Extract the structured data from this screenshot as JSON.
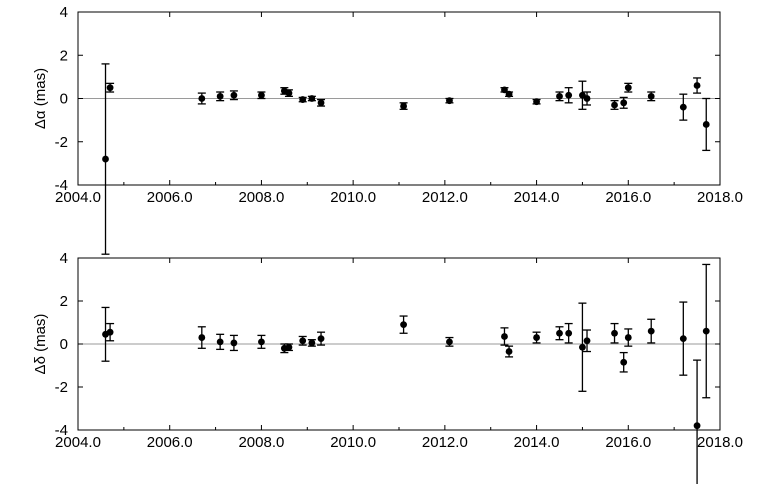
{
  "chart_data": [
    {
      "type": "scatter",
      "title": "",
      "xlabel": "",
      "ylabel": "Δα (mas)",
      "xlim": [
        2004.0,
        2018.0
      ],
      "ylim": [
        -4,
        4
      ],
      "xticks": [
        "2004.0",
        "2006.0",
        "2008.0",
        "2010.0",
        "2012.0",
        "2014.0",
        "2016.0",
        "2018.0"
      ],
      "yticks": [
        "4",
        "2",
        "0",
        "-2",
        "-4"
      ],
      "zero_line": true,
      "grid": false,
      "points": [
        {
          "x": 2004.6,
          "y": -2.8,
          "err": 4.4
        },
        {
          "x": 2004.7,
          "y": 0.5,
          "err": 0.2
        },
        {
          "x": 2006.7,
          "y": 0.0,
          "err": 0.25
        },
        {
          "x": 2007.1,
          "y": 0.1,
          "err": 0.2
        },
        {
          "x": 2007.4,
          "y": 0.15,
          "err": 0.2
        },
        {
          "x": 2008.0,
          "y": 0.15,
          "err": 0.15
        },
        {
          "x": 2008.5,
          "y": 0.35,
          "err": 0.15
        },
        {
          "x": 2008.6,
          "y": 0.25,
          "err": 0.15
        },
        {
          "x": 2008.9,
          "y": -0.05,
          "err": 0.1
        },
        {
          "x": 2009.1,
          "y": 0.0,
          "err": 0.1
        },
        {
          "x": 2009.3,
          "y": -0.2,
          "err": 0.15
        },
        {
          "x": 2011.1,
          "y": -0.35,
          "err": 0.15
        },
        {
          "x": 2012.1,
          "y": -0.1,
          "err": 0.1
        },
        {
          "x": 2013.3,
          "y": 0.4,
          "err": 0.1
        },
        {
          "x": 2013.4,
          "y": 0.2,
          "err": 0.1
        },
        {
          "x": 2014.0,
          "y": -0.15,
          "err": 0.1
        },
        {
          "x": 2014.5,
          "y": 0.1,
          "err": 0.2
        },
        {
          "x": 2014.7,
          "y": 0.15,
          "err": 0.35
        },
        {
          "x": 2015.0,
          "y": 0.15,
          "err": 0.65
        },
        {
          "x": 2015.1,
          "y": 0.0,
          "err": 0.3
        },
        {
          "x": 2015.7,
          "y": -0.3,
          "err": 0.2
        },
        {
          "x": 2015.9,
          "y": -0.2,
          "err": 0.25
        },
        {
          "x": 2016.0,
          "y": 0.5,
          "err": 0.2
        },
        {
          "x": 2016.5,
          "y": 0.1,
          "err": 0.2
        },
        {
          "x": 2017.2,
          "y": -0.4,
          "err": 0.6
        },
        {
          "x": 2017.5,
          "y": 0.6,
          "err": 0.35
        },
        {
          "x": 2017.7,
          "y": -1.2,
          "err": 1.2
        }
      ]
    },
    {
      "type": "scatter",
      "title": "",
      "xlabel": "",
      "ylabel": "Δδ (mas)",
      "xlim": [
        2004.0,
        2018.0
      ],
      "ylim": [
        -4,
        4
      ],
      "xticks": [
        "2004.0",
        "2006.0",
        "2008.0",
        "2010.0",
        "2012.0",
        "2014.0",
        "2016.0",
        "2018.0"
      ],
      "yticks": [
        "4",
        "2",
        "0",
        "-2",
        "-4"
      ],
      "zero_line": true,
      "grid": false,
      "points": [
        {
          "x": 2004.6,
          "y": 0.45,
          "err": 1.25
        },
        {
          "x": 2004.7,
          "y": 0.55,
          "err": 0.4
        },
        {
          "x": 2006.7,
          "y": 0.3,
          "err": 0.5
        },
        {
          "x": 2007.1,
          "y": 0.1,
          "err": 0.35
        },
        {
          "x": 2007.4,
          "y": 0.05,
          "err": 0.35
        },
        {
          "x": 2008.0,
          "y": 0.1,
          "err": 0.3
        },
        {
          "x": 2008.5,
          "y": -0.2,
          "err": 0.2
        },
        {
          "x": 2008.6,
          "y": -0.15,
          "err": 0.15
        },
        {
          "x": 2008.9,
          "y": 0.15,
          "err": 0.2
        },
        {
          "x": 2009.1,
          "y": 0.05,
          "err": 0.15
        },
        {
          "x": 2009.3,
          "y": 0.25,
          "err": 0.3
        },
        {
          "x": 2011.1,
          "y": 0.9,
          "err": 0.4
        },
        {
          "x": 2012.1,
          "y": 0.1,
          "err": 0.2
        },
        {
          "x": 2013.3,
          "y": 0.35,
          "err": 0.4
        },
        {
          "x": 2013.4,
          "y": -0.35,
          "err": 0.25
        },
        {
          "x": 2014.0,
          "y": 0.3,
          "err": 0.25
        },
        {
          "x": 2014.5,
          "y": 0.5,
          "err": 0.3
        },
        {
          "x": 2014.7,
          "y": 0.5,
          "err": 0.45
        },
        {
          "x": 2015.0,
          "y": -0.15,
          "err": 2.05
        },
        {
          "x": 2015.1,
          "y": 0.15,
          "err": 0.5
        },
        {
          "x": 2015.7,
          "y": 0.5,
          "err": 0.45
        },
        {
          "x": 2015.9,
          "y": -0.85,
          "err": 0.45
        },
        {
          "x": 2016.0,
          "y": 0.3,
          "err": 0.4
        },
        {
          "x": 2016.5,
          "y": 0.6,
          "err": 0.55
        },
        {
          "x": 2017.2,
          "y": 0.25,
          "err": 1.7
        },
        {
          "x": 2017.5,
          "y": -3.8,
          "err": 3.05
        },
        {
          "x": 2017.7,
          "y": 0.6,
          "err": 3.1
        }
      ]
    }
  ]
}
